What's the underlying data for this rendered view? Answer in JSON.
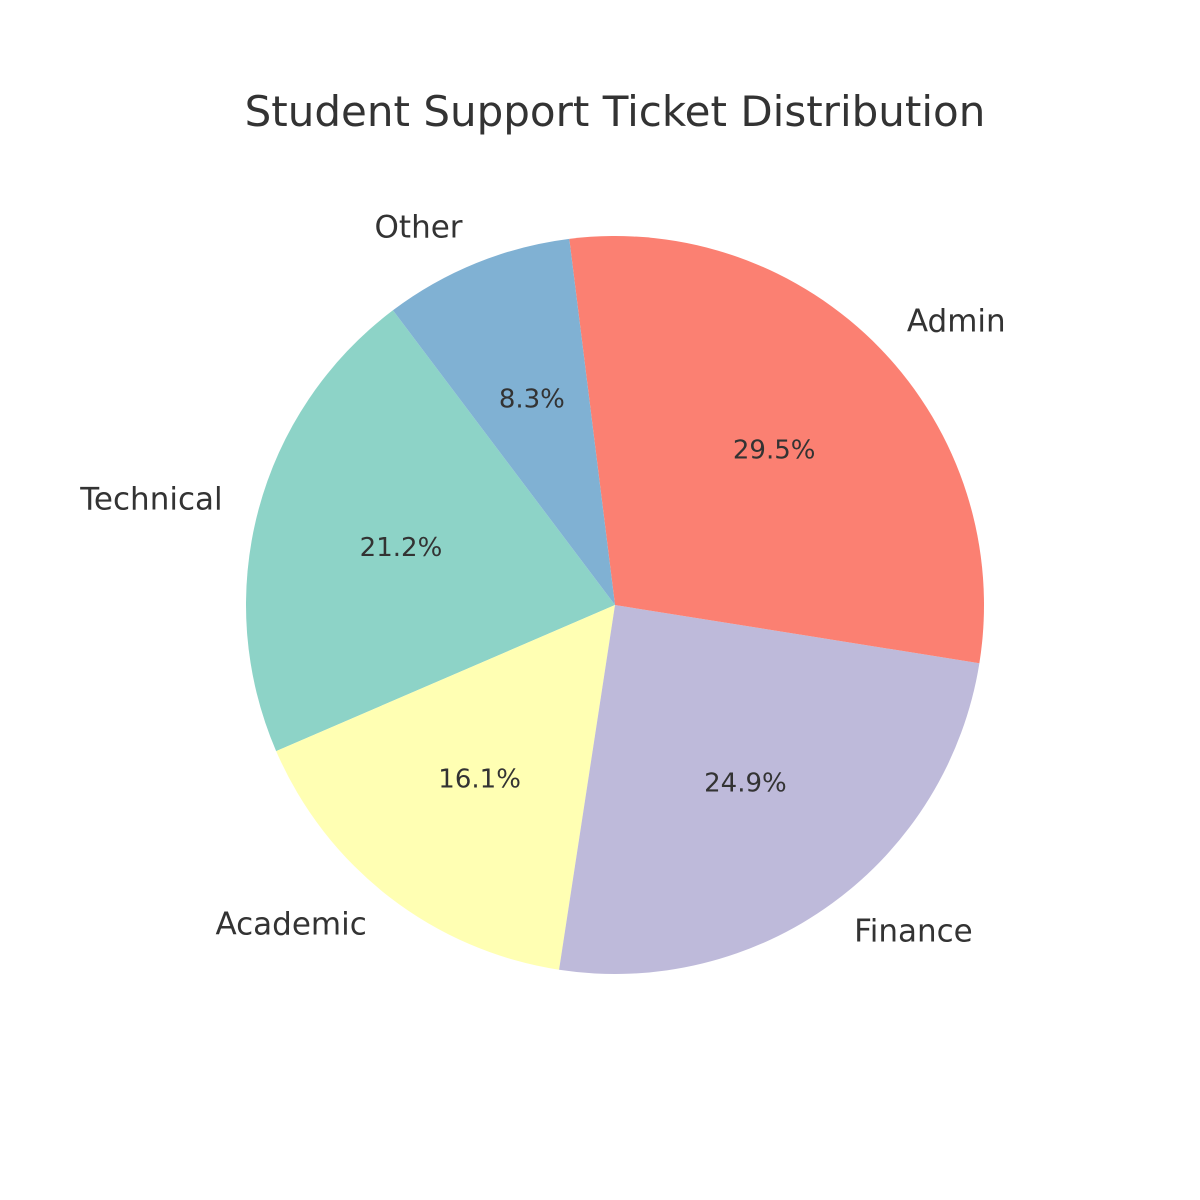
{
  "chart_data": {
    "type": "pie",
    "title": "Student Support Ticket Distribution",
    "start_angle_deg": 127,
    "direction": "counterclockwise",
    "slices": [
      {
        "label": "Technical",
        "value": 21.2,
        "pct_label": "21.2%",
        "color": "#8dd3c7"
      },
      {
        "label": "Academic",
        "value": 16.1,
        "pct_label": "16.1%",
        "color": "#ffffb3"
      },
      {
        "label": "Finance",
        "value": 24.9,
        "pct_label": "24.9%",
        "color": "#bebada"
      },
      {
        "label": "Admin",
        "value": 29.5,
        "pct_label": "29.5%",
        "color": "#fb8072"
      },
      {
        "label": "Other",
        "value": 8.3,
        "pct_label": "8.3%",
        "color": "#80b1d3"
      }
    ]
  }
}
